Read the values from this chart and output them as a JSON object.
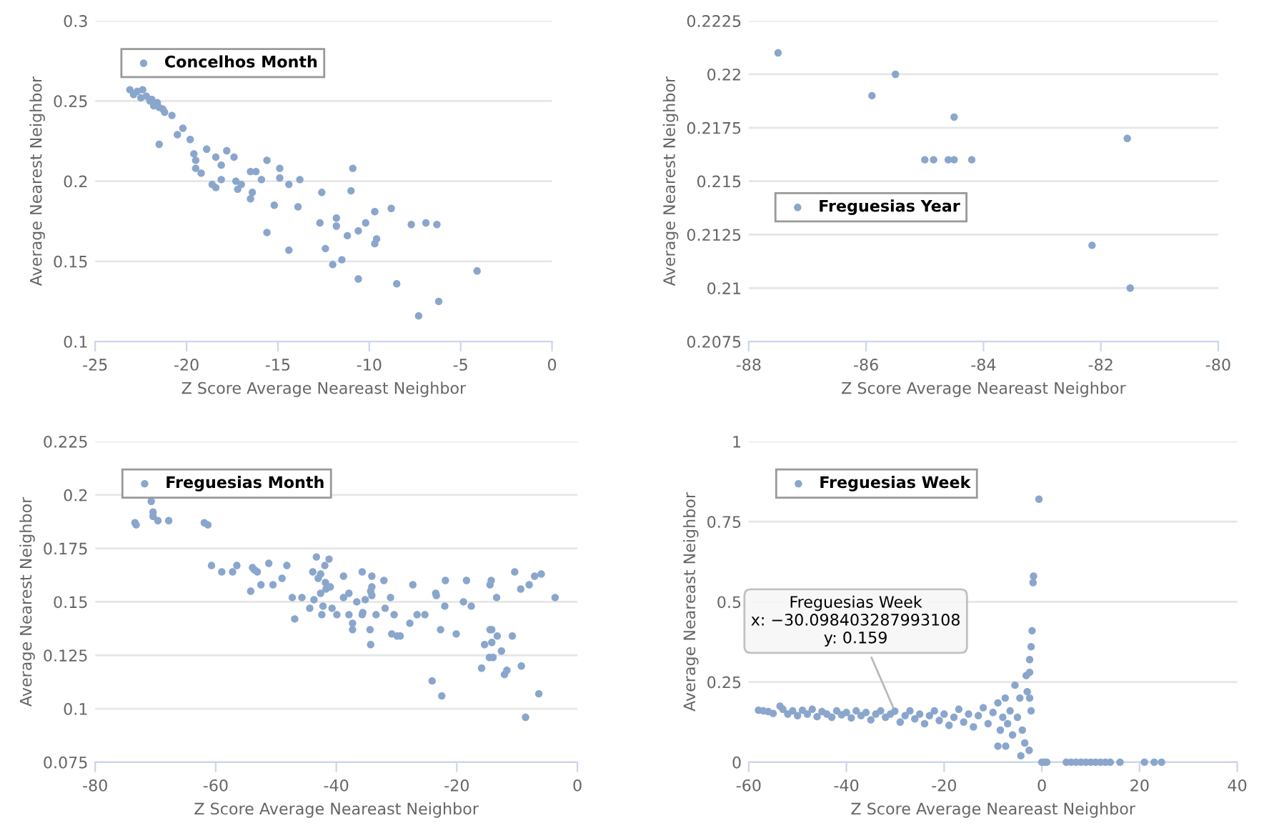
{
  "chart_data": [
    {
      "type": "scatter",
      "xlabel": "Z Score Average Neareast Neighbor",
      "ylabel": "Average Nearest Neighbor",
      "xlim": [
        -25,
        0
      ],
      "xticks": [
        -25,
        -20,
        -15,
        -10,
        -5,
        0
      ],
      "ylim": [
        0.1,
        0.3
      ],
      "yticks": [
        0.1,
        0.15,
        0.2,
        0.25,
        0.3
      ],
      "grid": "y",
      "legend": "top left",
      "series": [
        {
          "name": "Concelhos Month",
          "color": "#8aa6cc",
          "x": [
            -23.1,
            -22.7,
            -22.4,
            -22.9,
            -22.2,
            -21.9,
            -21.6,
            -21.8,
            -21.3,
            -22.0,
            -21.5,
            -22.5,
            -21.2,
            -20.8,
            -20.2,
            -19.8,
            -20.5,
            -21.5,
            -19.6,
            -19.5,
            -19.5,
            -19.2,
            -18.9,
            -18.4,
            -18.1,
            -17.8,
            -17.4,
            -18.1,
            -18.6,
            -18.4,
            -17.3,
            -17.0,
            -17.2,
            -16.5,
            -16.2,
            -16.4,
            -16.5,
            -15.9,
            -15.6,
            -14.9,
            -14.9,
            -14.4,
            -13.8,
            -15.2,
            -13.9,
            -15.6,
            -14.4,
            -12.6,
            -12.7,
            -12.4,
            -11.8,
            -11.8,
            -12.0,
            -11.5,
            -11.2,
            -10.9,
            -11.0,
            -10.6,
            -10.6,
            -10.2,
            -9.7,
            -9.7,
            -9.6,
            -8.8,
            -8.5,
            -7.7,
            -7.3,
            -6.9,
            -6.3,
            -6.2,
            -4.1
          ],
          "values": [
            0.257,
            0.256,
            0.257,
            0.254,
            0.253,
            0.251,
            0.249,
            0.247,
            0.245,
            0.25,
            0.246,
            0.252,
            0.243,
            0.241,
            0.233,
            0.226,
            0.229,
            0.223,
            0.217,
            0.213,
            0.208,
            0.205,
            0.22,
            0.215,
            0.21,
            0.219,
            0.215,
            0.201,
            0.198,
            0.196,
            0.2,
            0.198,
            0.195,
            0.206,
            0.206,
            0.193,
            0.189,
            0.201,
            0.213,
            0.208,
            0.202,
            0.198,
            0.201,
            0.185,
            0.184,
            0.168,
            0.157,
            0.193,
            0.174,
            0.158,
            0.177,
            0.172,
            0.148,
            0.151,
            0.166,
            0.208,
            0.194,
            0.169,
            0.139,
            0.174,
            0.181,
            0.161,
            0.164,
            0.183,
            0.136,
            0.173,
            0.116,
            0.174,
            0.173,
            0.125,
            0.144
          ]
        }
      ]
    },
    {
      "type": "scatter",
      "xlabel": "Z Score Average Neareast Neighbor",
      "ylabel": "Average Nearest Neighbor",
      "xlim": [
        -88,
        -80
      ],
      "xticks": [
        -88,
        -86,
        -84,
        -82,
        -80
      ],
      "ylim": [
        0.2075,
        0.2225
      ],
      "yticks": [
        0.2075,
        0.21,
        0.2125,
        0.215,
        0.2175,
        0.22,
        0.2225
      ],
      "grid": "y",
      "legend": "left",
      "series": [
        {
          "name": "Freguesias Year",
          "color": "#8aa6cc",
          "x": [
            -87.5,
            -85.9,
            -85.5,
            -84.5,
            -85.0,
            -84.85,
            -84.6,
            -84.5,
            -84.2,
            -82.15,
            -81.55,
            -81.5
          ],
          "values": [
            0.221,
            0.219,
            0.22,
            0.218,
            0.216,
            0.216,
            0.216,
            0.216,
            0.216,
            0.212,
            0.217,
            0.21
          ]
        }
      ]
    },
    {
      "type": "scatter",
      "xlabel": "Z Score Average Neareast Neighbor",
      "ylabel": "Average Nearest Neighbor",
      "xlim": [
        -80,
        0
      ],
      "xticks": [
        -80,
        -60,
        -40,
        -20,
        0
      ],
      "ylim": [
        0.075,
        0.225
      ],
      "yticks": [
        0.075,
        0.1,
        0.125,
        0.15,
        0.175,
        0.2,
        0.225
      ],
      "grid": "y",
      "legend": "top left",
      "series": [
        {
          "name": "Freguesias Month",
          "color": "#8aa6cc",
          "x": [
            -73.4,
            -73.2,
            -70.7,
            -70.4,
            -70.4,
            -69.6,
            -67.8,
            -61.9,
            -61.3,
            -60.7,
            -59.0,
            -57.2,
            -56.5,
            -53.9,
            -53.6,
            -53.1,
            -54.2,
            -52.5,
            -50.5,
            -51.2,
            -49.0,
            -48.2,
            -47.3,
            -46.9,
            -45.7,
            -44.4,
            -43.9,
            -43.7,
            -43.3,
            -43.0,
            -42.6,
            -42.6,
            -42.4,
            -42.2,
            -41.9,
            -41.8,
            -41.7,
            -41.2,
            -41.0,
            -40.7,
            -39.9,
            -38.8,
            -38.8,
            -37.9,
            -37.9,
            -37.3,
            -37.3,
            -36.6,
            -35.7,
            -35.7,
            -35.6,
            -35.2,
            -34.4,
            -34.3,
            -34.1,
            -34.1,
            -34.1,
            -34.3,
            -33.4,
            -32.1,
            -31.9,
            -31.0,
            -30.8,
            -30.4,
            -29.9,
            -29.4,
            -27.8,
            -27.3,
            -26.6,
            -25.3,
            -24.1,
            -23.5,
            -23.4,
            -22.7,
            -22.5,
            -22.0,
            -21.9,
            -20.1,
            -18.9,
            -18.4,
            -17.6,
            -15.9,
            -15.4,
            -14.5,
            -14.5,
            -14.3,
            -14.2,
            -14.6,
            -14.0,
            -14.2,
            -13.4,
            -13.3,
            -12.6,
            -12.1,
            -11.7,
            -10.8,
            -10.4,
            -9.4,
            -9.3,
            -8.6,
            -8.0,
            -7.1,
            -6.4,
            -6.0,
            -3.7
          ],
          "values": [
            0.187,
            0.186,
            0.197,
            0.192,
            0.19,
            0.188,
            0.188,
            0.187,
            0.186,
            0.167,
            0.164,
            0.164,
            0.167,
            0.166,
            0.165,
            0.164,
            0.155,
            0.158,
            0.158,
            0.168,
            0.161,
            0.167,
            0.152,
            0.142,
            0.152,
            0.147,
            0.164,
            0.151,
            0.171,
            0.161,
            0.163,
            0.154,
            0.144,
            0.148,
            0.167,
            0.159,
            0.156,
            0.17,
            0.157,
            0.147,
            0.144,
            0.162,
            0.152,
            0.154,
            0.144,
            0.14,
            0.137,
            0.15,
            0.164,
            0.144,
            0.145,
            0.151,
            0.137,
            0.13,
            0.162,
            0.157,
            0.153,
            0.155,
            0.144,
            0.16,
            0.147,
            0.152,
            0.135,
            0.144,
            0.134,
            0.134,
            0.14,
            0.158,
            0.144,
            0.144,
            0.113,
            0.154,
            0.153,
            0.137,
            0.106,
            0.148,
            0.16,
            0.135,
            0.15,
            0.16,
            0.148,
            0.119,
            0.13,
            0.137,
            0.158,
            0.16,
            0.131,
            0.124,
            0.124,
            0.137,
            0.152,
            0.134,
            0.127,
            0.116,
            0.118,
            0.134,
            0.164,
            0.156,
            0.12,
            0.096,
            0.158,
            0.162,
            0.107,
            0.163,
            0.152
          ]
        }
      ]
    },
    {
      "type": "scatter",
      "xlabel": "Z Score Average Neareast Neighbor",
      "ylabel": "Average Neareast Neighbor",
      "xlim": [
        -60,
        40
      ],
      "xticks": [
        -60,
        -40,
        -20,
        0,
        20,
        40
      ],
      "ylim": [
        0,
        1
      ],
      "yticks": [
        0,
        0.25,
        0.5,
        0.75,
        1
      ],
      "grid": "y",
      "legend": "top left",
      "annotations": [
        {
          "text": "Freguesias Week\nx: −30.098403287993108\ny: 0.159",
          "x": -30.098403287993108,
          "y": 0.159
        }
      ],
      "series": [
        {
          "name": "Freguesias Week",
          "color": "#8aa6cc",
          "x": [
            -58,
            -57,
            -56,
            -55,
            -53.6,
            -53,
            -52,
            -51,
            -50,
            -49,
            -48,
            -47,
            -46,
            -45,
            -44,
            -43,
            -42,
            -41,
            -40,
            -39,
            -38,
            -37,
            -36,
            -35,
            -34,
            -33,
            -32,
            -31,
            -30.098403287993108,
            -29,
            -28,
            -27,
            -26,
            -25,
            -24,
            -23,
            -22,
            -21,
            -20,
            -19,
            -18,
            -17,
            -16,
            -15,
            -14,
            -13,
            -12,
            -11,
            -10,
            -9,
            -8.5,
            -8,
            -7.5,
            -7,
            -6.5,
            -6,
            -5.5,
            -5,
            -4.5,
            -4,
            -3.5,
            -3.2,
            -3,
            -2.5,
            -2.5,
            -2.2,
            -2,
            -1.8,
            -1.7,
            -0.6,
            -7.4,
            -9,
            -4.3,
            -2.6,
            -2.5,
            -2.2,
            0,
            0.5,
            1,
            5,
            6,
            7,
            8,
            9,
            10,
            11,
            12,
            13,
            14,
            16,
            21,
            23,
            24.5
          ],
          "values": [
            0.162,
            0.16,
            0.158,
            0.152,
            0.175,
            0.165,
            0.15,
            0.16,
            0.145,
            0.162,
            0.15,
            0.165,
            0.142,
            0.158,
            0.15,
            0.14,
            0.16,
            0.148,
            0.155,
            0.138,
            0.16,
            0.145,
            0.155,
            0.132,
            0.15,
            0.16,
            0.14,
            0.15,
            0.159,
            0.125,
            0.145,
            0.16,
            0.135,
            0.15,
            0.12,
            0.145,
            0.16,
            0.13,
            0.15,
            0.115,
            0.14,
            0.165,
            0.125,
            0.15,
            0.11,
            0.145,
            0.17,
            0.12,
            0.155,
            0.185,
            0.1,
            0.14,
            0.2,
            0.12,
            0.16,
            0.085,
            0.24,
            0.14,
            0.2,
            0.1,
            0.06,
            0.27,
            0.22,
            0.28,
            0.32,
            0.36,
            0.41,
            0.56,
            0.58,
            0.82,
            0.05,
            0.05,
            0.02,
            0.037,
            0.2,
            0.16,
            0,
            0,
            0,
            0,
            0,
            0,
            0,
            0,
            0,
            0,
            0,
            0,
            0,
            0,
            0,
            0,
            0
          ]
        }
      ]
    }
  ]
}
